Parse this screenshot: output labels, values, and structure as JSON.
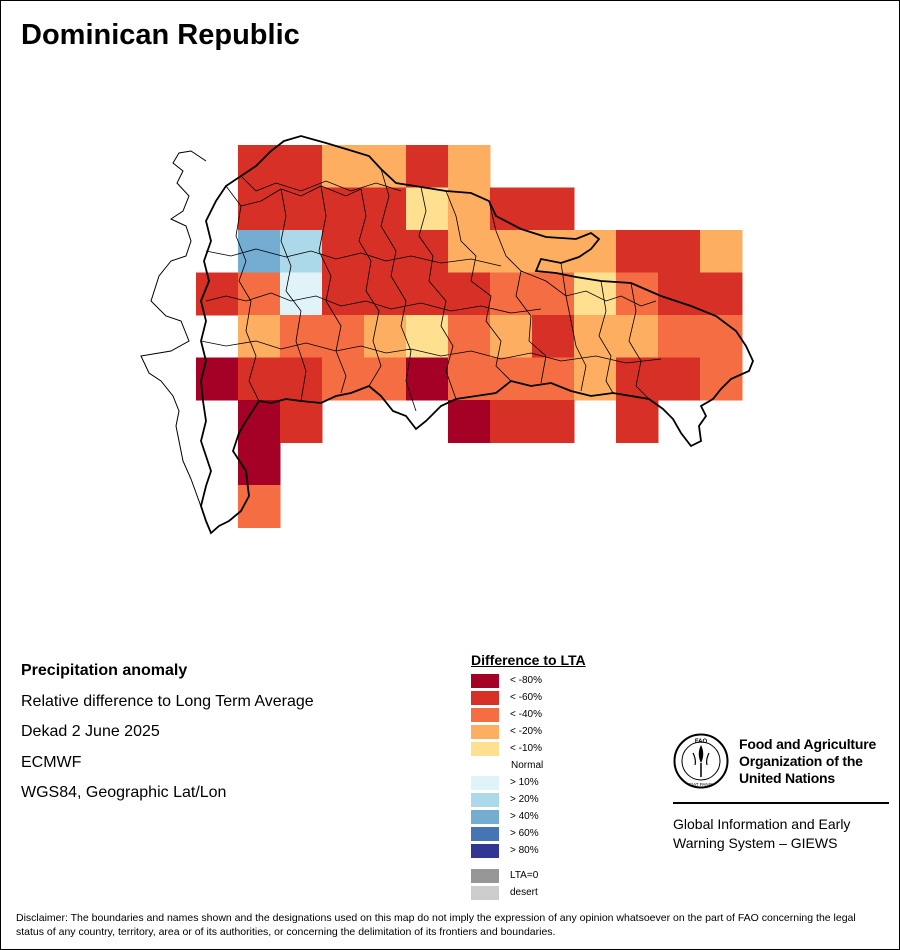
{
  "title": "Dominican Republic",
  "meta": {
    "heading": "Precipitation anomaly",
    "lines": [
      "Relative difference to Long Term Average",
      "Dekad 2 June 2025",
      "ECMWF",
      "WGS84, Geographic Lat/Lon"
    ]
  },
  "legend": {
    "title": "Difference to LTA",
    "items": [
      {
        "label": "< -80%",
        "color": "#a50026"
      },
      {
        "label": "< -60%",
        "color": "#d73027"
      },
      {
        "label": "< -40%",
        "color": "#f46d43"
      },
      {
        "label": "< -20%",
        "color": "#fdae61"
      },
      {
        "label": "< -10%",
        "color": "#fee090"
      },
      {
        "label": "Normal",
        "color": "#ffffff"
      },
      {
        "label": "> 10%",
        "color": "#e0f3f8"
      },
      {
        "label": "> 20%",
        "color": "#abd9e9"
      },
      {
        "label": "> 40%",
        "color": "#74add1"
      },
      {
        "label": "> 60%",
        "color": "#4575b4"
      },
      {
        "label": "> 80%",
        "color": "#313695"
      }
    ],
    "extra": [
      {
        "label": "LTA=0",
        "color": "#969696"
      },
      {
        "label": "desert",
        "color": "#cccccc"
      }
    ]
  },
  "organization": {
    "logo_text": "FAO",
    "logo_motto": "FIAT PANIS",
    "name_lines": [
      "Food and Agriculture",
      "Organization of the",
      "United Nations"
    ],
    "program_lines": [
      "Global Information and Early",
      "Warning System – GIEWS"
    ]
  },
  "disclaimer": "Disclaimer: The boundaries and names shown and the designations used on this map do not imply the expression of any opinion whatsoever on the part of FAO concerning the legal status of any country, territory, area or of its authorities, or concerning the delimitation of its frontiers and boundaries.",
  "grid": {
    "cols": 14,
    "rows": 9,
    "class_colors": {
      "a": "#a50026",
      "r": "#d73027",
      "o": "#f46d43",
      "p": "#fdae61",
      "y": "#fee090",
      "l": "#e0f3f8",
      "b": "#abd9e9",
      "m": "#74add1"
    },
    "cells": [
      "..rrpprp......",
      "..rrrryprr....",
      "..mbrrrpppprrp",
      ".rolrrrrooyorr",
      "..poopyoprppoo",
      ".arrooaoooprro",
      "..ar...arr.r..",
      "..a..........",
      "..o.........."
    ]
  }
}
